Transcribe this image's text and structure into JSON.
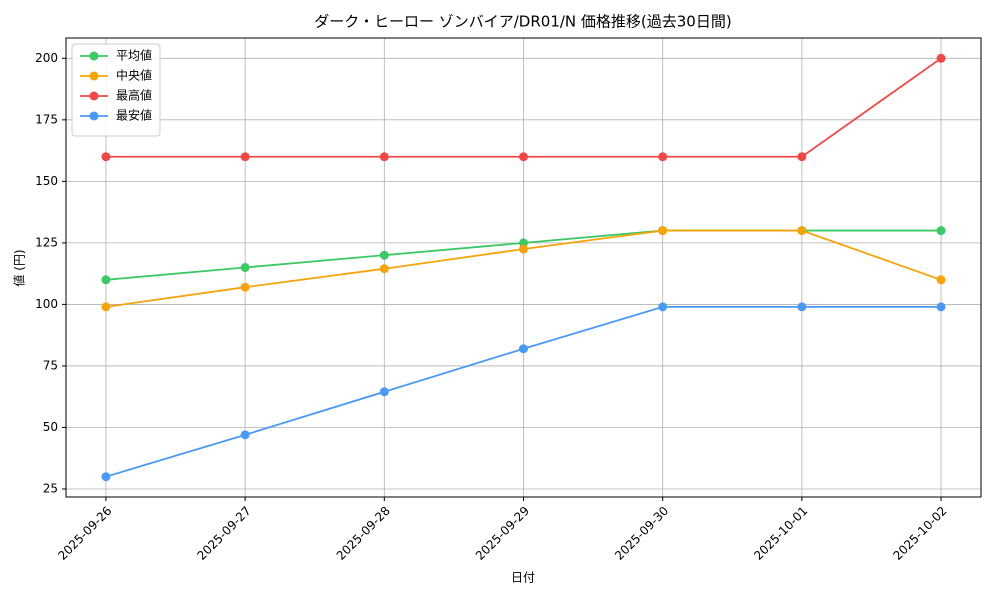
{
  "chart_data": {
    "type": "line",
    "title": "ダーク・ヒーロー ゾンバイア/DR01/N 価格推移(過去30日間)",
    "x_label": "日付",
    "y_label": "値 (円)",
    "categories": [
      "2025-09-26",
      "2025-09-27",
      "2025-09-28",
      "2025-09-29",
      "2025-09-30",
      "2025-10-01",
      "2025-10-02"
    ],
    "series": [
      {
        "name": "平均値",
        "color": "#3cc864",
        "values": [
          110,
          115,
          120,
          125,
          130,
          130,
          130
        ]
      },
      {
        "name": "中央値",
        "color": "#f5a30a",
        "values": [
          99,
          107,
          114.5,
          122.5,
          130,
          130,
          110
        ]
      },
      {
        "name": "最高値",
        "color": "#f04848",
        "values": [
          160,
          160,
          160,
          160,
          160,
          160,
          200
        ]
      },
      {
        "name": "最安値",
        "color": "#4a9af5",
        "values": [
          30,
          47,
          64.5,
          82,
          99,
          99,
          99
        ]
      }
    ],
    "ylim": [
      21.75,
      208.25
    ],
    "yticks": [
      25,
      50,
      75,
      100,
      125,
      150,
      175,
      200
    ],
    "grid": true,
    "legend": "upper left"
  }
}
